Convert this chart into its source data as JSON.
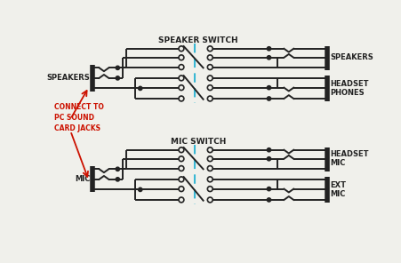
{
  "title_speaker": "SPEAKER SWITCH",
  "title_mic": "MIC SWITCH",
  "label_speakers_left": "SPEAKERS",
  "label_mic_left": "MIC",
  "label_connect": "CONNECT TO\nPC SOUND\nCARD JACKS",
  "label_speakers_right": "SPEAKERS",
  "label_headset_phones": "HEADSET\nPHONES",
  "label_headset_mic": "HEADSET\nMIC",
  "label_ext_mic": "EXT\nMIC",
  "bg_color": "#f0f0eb",
  "line_color": "#222222",
  "dashed_color": "#39b8d4",
  "red_color": "#cc1100",
  "lw": 1.4,
  "lw_thick": 4.0,
  "lw_dash": 1.5
}
